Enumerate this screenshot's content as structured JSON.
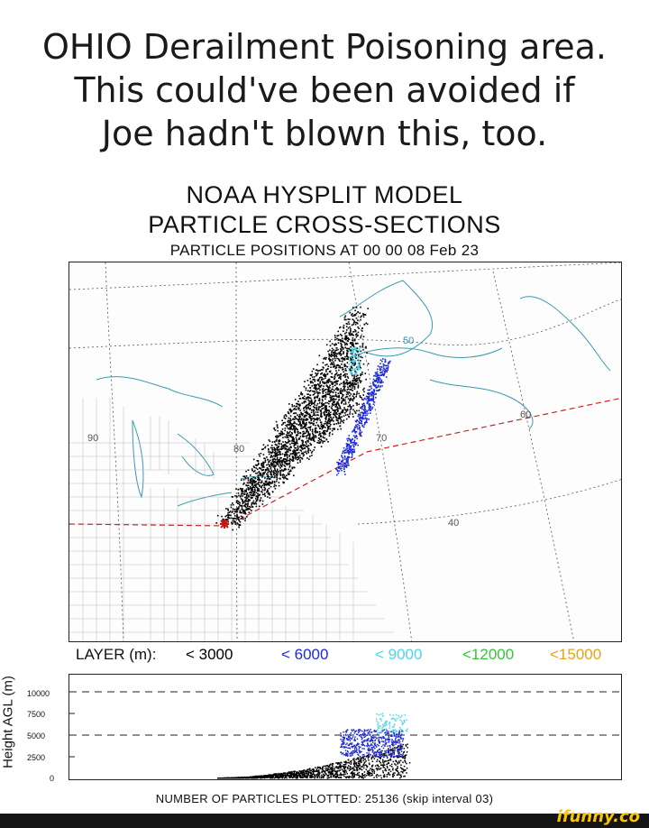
{
  "caption": {
    "line1": "OHIO Derailment Poisoning area.",
    "line2": "This could've been avoided if",
    "line3": "Joe hadn't blown this, too."
  },
  "figure": {
    "title_line1": "NOAA HYSPLIT MODEL",
    "title_line2": "PARTICLE CROSS-SECTIONS",
    "subtitle": "PARTICLE POSITIONS AT 00 00  08 Feb 23",
    "map_labels": {
      "lat_50": "50",
      "lat_60": "60",
      "lat_40": "40",
      "lon_90": "90",
      "lon_80": "80",
      "lon_70": "70"
    },
    "legend": {
      "prefix": "LAYER (m):",
      "items": [
        {
          "label": "< 3000",
          "color": "#000000"
        },
        {
          "label": "< 6000",
          "color": "#1f2bd8"
        },
        {
          "label": "< 9000",
          "color": "#4fd6e8"
        },
        {
          "label": "<12000",
          "color": "#39c13a"
        },
        {
          "label": "<15000",
          "color": "#e6a21a"
        }
      ]
    },
    "y_axis": {
      "label": "Height AGL (m)",
      "ticks": [
        "10000",
        "7500",
        "5000",
        "2500",
        "0"
      ]
    },
    "footer": "NUMBER OF PARTICLES PLOTTED:  25136  (skip interval    03)"
  },
  "colors": {
    "source_marker": "#cc1111",
    "trajectory_line": "#cc2222"
  },
  "brand": "ifunny.co"
}
